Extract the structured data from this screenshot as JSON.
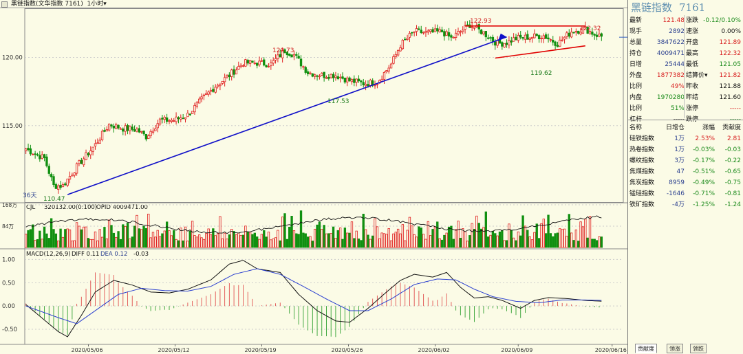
{
  "header": {
    "title": "黑链指数(文华指数 7161)",
    "period": "1小时▾"
  },
  "panel": {
    "name": "黑链指数",
    "code": "7161",
    "quote": [
      {
        "l1": "最新",
        "v1": "121.48",
        "c1": "red",
        "l2": "涨跌",
        "v2": "-0.12/0.10%",
        "c2": "green"
      },
      {
        "l1": "现手",
        "v1": "2892",
        "c1": "blue",
        "l2": "速涨",
        "v2": "0.00%",
        "c2": "dark"
      },
      {
        "l1": "总量",
        "v1": "3847622",
        "c1": "blue",
        "l2": "开盘",
        "v2": "121.89",
        "c2": "red"
      },
      {
        "l1": "持仓",
        "v1": "4009471",
        "c1": "blue",
        "l2": "最高",
        "v2": "122.32",
        "c2": "red"
      },
      {
        "l1": "日增",
        "v1": "25444",
        "c1": "blue",
        "l2": "最低",
        "v2": "121.05",
        "c2": "green"
      },
      {
        "l1": "外盘",
        "v1": "1877382",
        "c1": "red",
        "l2": "结算价▾",
        "v2": "121.82",
        "c2": "red"
      },
      {
        "l1": "比例",
        "v1": "49%",
        "c1": "red",
        "l2": "昨收",
        "v2": "121.88",
        "c2": "dark"
      },
      {
        "l1": "内盘",
        "v1": "1970280",
        "c1": "green",
        "l2": "昨结",
        "v2": "121.60",
        "c2": "dark"
      },
      {
        "l1": "比例",
        "v1": "51%",
        "c1": "green",
        "l2": "涨停",
        "v2": "-----",
        "c2": "red"
      },
      {
        "l1": "杠杆",
        "v1": "-----",
        "c1": "dark",
        "l2": "跌停",
        "v2": "-----",
        "c2": "green"
      }
    ],
    "table_headers": [
      "名称",
      "日增仓",
      "涨幅",
      "贡献度"
    ],
    "table": [
      {
        "name": "硅铁指数",
        "c2": "1万",
        "c3": "2.53%",
        "c4": "2.81",
        "col": "red"
      },
      {
        "name": "热卷指数",
        "c2": "1万",
        "c3": "-0.03%",
        "c4": "-0.03",
        "col": "green"
      },
      {
        "name": "螺纹指数",
        "c2": "3万",
        "c3": "-0.17%",
        "c4": "-0.22",
        "col": "green"
      },
      {
        "name": "焦煤指数",
        "c2": "47",
        "c3": "-0.51%",
        "c4": "-0.65",
        "col": "green"
      },
      {
        "name": "焦炭指数",
        "c2": "8959",
        "c3": "-0.49%",
        "c4": "-0.75",
        "col": "green"
      },
      {
        "name": "锰硅指数",
        "c2": "-1646",
        "c3": "-0.71%",
        "c4": "-0.81",
        "col": "green"
      },
      {
        "name": "铁矿指数",
        "c2": "-4万",
        "c3": "-1.25%",
        "c4": "-1.24",
        "col": "green"
      }
    ],
    "tabs": [
      "贡献度",
      "领涨",
      "领跌"
    ]
  },
  "chart_data": [
    {
      "type": "candlestick",
      "title": "",
      "y_ticks": [
        "120.00",
        "115.00"
      ],
      "ylim": [
        109.4,
        123.3
      ],
      "x_ticks": [
        "2020/05/06",
        "2020/05/12",
        "2020/05/19",
        "2020/05/26",
        "2020/06/02",
        "2020/06/09",
        "2020/06/16"
      ],
      "annotations": [
        "122.93",
        "122.32",
        "120.73",
        "117.53",
        "119.62",
        "110.47",
        "36天"
      ],
      "up_color": "#e02020",
      "down_color": "#109010",
      "trendline_color": "#1010c8",
      "resistance_color": "#e00000",
      "close_path": [
        [
          0,
          113.3
        ],
        [
          8,
          112.6
        ],
        [
          12,
          110.6
        ],
        [
          16,
          110.6
        ],
        [
          22,
          112.0
        ],
        [
          30,
          113.6
        ],
        [
          36,
          115.1
        ],
        [
          42,
          114.8
        ],
        [
          48,
          114.7
        ],
        [
          52,
          114.2
        ],
        [
          58,
          115.4
        ],
        [
          64,
          115.4
        ],
        [
          70,
          115.8
        ],
        [
          76,
          116.9
        ],
        [
          82,
          117.9
        ],
        [
          88,
          118.7
        ],
        [
          94,
          119.6
        ],
        [
          100,
          119.6
        ],
        [
          106,
          119.5
        ],
        [
          112,
          120.5
        ],
        [
          116,
          120.2
        ],
        [
          122,
          118.9
        ],
        [
          128,
          118.7
        ],
        [
          134,
          118.7
        ],
        [
          140,
          118.3
        ],
        [
          146,
          118.1
        ],
        [
          152,
          118.2
        ],
        [
          158,
          119.5
        ],
        [
          162,
          120.9
        ],
        [
          168,
          121.9
        ],
        [
          174,
          121.8
        ],
        [
          180,
          121.9
        ],
        [
          184,
          121.4
        ],
        [
          188,
          121.9
        ],
        [
          192,
          122.4
        ],
        [
          198,
          121.8
        ],
        [
          204,
          121.0
        ],
        [
          208,
          121.1
        ],
        [
          212,
          121.4
        ],
        [
          218,
          121.5
        ],
        [
          224,
          121.6
        ],
        [
          230,
          121.0
        ],
        [
          236,
          121.9
        ],
        [
          242,
          122.1
        ],
        [
          246,
          121.7
        ],
        [
          250,
          121.5
        ]
      ],
      "n_bars": 250
    },
    {
      "type": "bar",
      "title": "CJL",
      "legend": [
        "320132.00(0:100)",
        "OPID 4009471.00"
      ],
      "y_ticks": [
        "168万",
        "84万"
      ],
      "ylim": [
        0,
        168
      ]
    },
    {
      "type": "line",
      "title": "MACD(12,26,9)",
      "legend": [
        "DIFF 0.11",
        "DEA 0.12",
        "-0.03"
      ],
      "y_ticks": [
        "1.00",
        "0.50",
        "0.00",
        "-0.50"
      ],
      "ylim": [
        -0.75,
        1.05
      ],
      "diff_path": [
        [
          0,
          0.03
        ],
        [
          14,
          -0.55
        ],
        [
          18,
          -0.66
        ],
        [
          24,
          -0.2
        ],
        [
          30,
          0.3
        ],
        [
          38,
          0.55
        ],
        [
          46,
          0.45
        ],
        [
          54,
          0.3
        ],
        [
          62,
          0.28
        ],
        [
          70,
          0.36
        ],
        [
          80,
          0.56
        ],
        [
          88,
          0.9
        ],
        [
          94,
          0.98
        ],
        [
          100,
          0.8
        ],
        [
          110,
          0.72
        ],
        [
          118,
          0.25
        ],
        [
          126,
          -0.1
        ],
        [
          134,
          -0.32
        ],
        [
          140,
          -0.35
        ],
        [
          148,
          -0.05
        ],
        [
          156,
          0.3
        ],
        [
          162,
          0.55
        ],
        [
          168,
          0.68
        ],
        [
          176,
          0.62
        ],
        [
          182,
          0.72
        ],
        [
          188,
          0.4
        ],
        [
          194,
          0.17
        ],
        [
          200,
          0.2
        ],
        [
          206,
          0.12
        ],
        [
          214,
          -0.05
        ],
        [
          220,
          0.12
        ],
        [
          226,
          0.18
        ],
        [
          234,
          0.16
        ],
        [
          242,
          0.12
        ],
        [
          250,
          0.1
        ]
      ],
      "dea_path": [
        [
          0,
          0.0
        ],
        [
          14,
          -0.25
        ],
        [
          22,
          -0.38
        ],
        [
          30,
          -0.1
        ],
        [
          40,
          0.25
        ],
        [
          50,
          0.38
        ],
        [
          60,
          0.33
        ],
        [
          70,
          0.32
        ],
        [
          80,
          0.42
        ],
        [
          90,
          0.68
        ],
        [
          100,
          0.8
        ],
        [
          110,
          0.68
        ],
        [
          120,
          0.42
        ],
        [
          130,
          0.15
        ],
        [
          140,
          -0.1
        ],
        [
          148,
          -0.1
        ],
        [
          158,
          0.15
        ],
        [
          168,
          0.46
        ],
        [
          178,
          0.58
        ],
        [
          186,
          0.56
        ],
        [
          194,
          0.36
        ],
        [
          202,
          0.2
        ],
        [
          212,
          0.1
        ],
        [
          222,
          0.07
        ],
        [
          232,
          0.13
        ],
        [
          242,
          0.13
        ],
        [
          250,
          0.12
        ]
      ]
    }
  ]
}
